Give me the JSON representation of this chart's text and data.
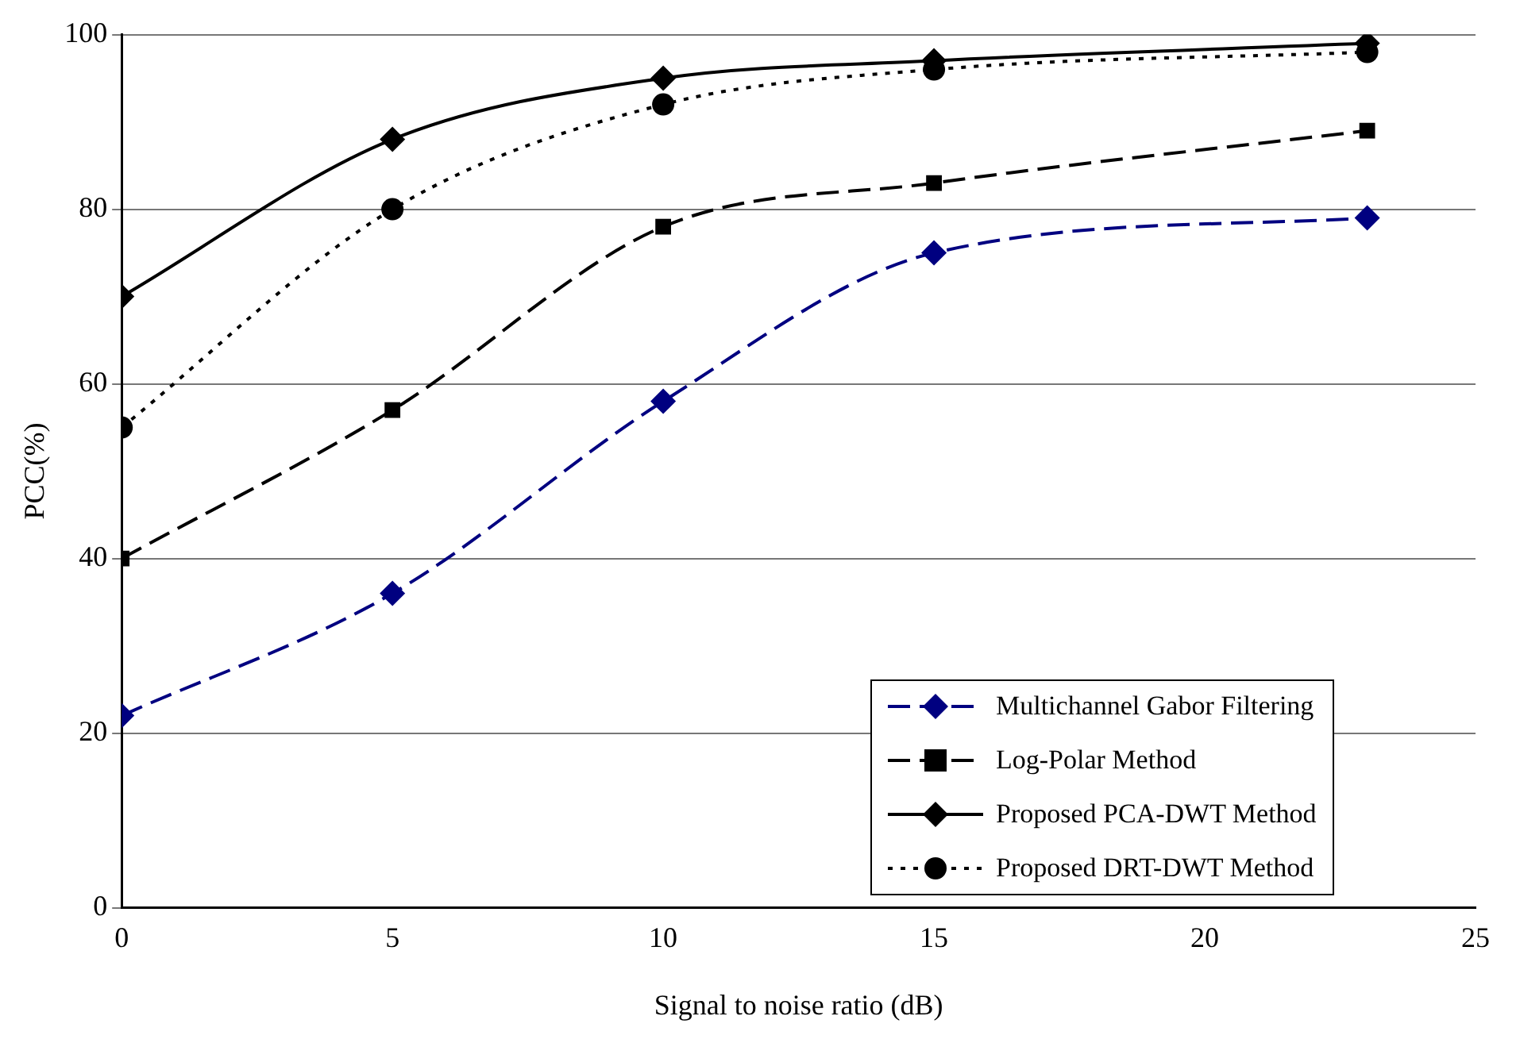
{
  "chart_data": {
    "type": "line",
    "xlabel": "Signal to noise ratio (dB)",
    "ylabel": "PCC(%)",
    "x": [
      0,
      5,
      10,
      15,
      23
    ],
    "series": [
      {
        "name": "Multichannel Gabor Filtering",
        "color": "#000080",
        "values": [
          22,
          36,
          58,
          75,
          79
        ],
        "marker": "diamond",
        "line_style": "dashed"
      },
      {
        "name": "Log-Polar Method",
        "color": "#000000",
        "values": [
          40,
          57,
          78,
          83,
          89
        ],
        "marker": "square",
        "line_style": "dashed"
      },
      {
        "name": "Proposed PCA-DWT Method",
        "color": "#000000",
        "values": [
          70,
          88,
          95,
          97,
          99
        ],
        "marker": "diamond",
        "line_style": "solid"
      },
      {
        "name": "Proposed DRT-DWT Method",
        "color": "#000000",
        "values": [
          55,
          80,
          92,
          96,
          98
        ],
        "marker": "circle",
        "line_style": "dotted"
      }
    ],
    "xlim": [
      0,
      25
    ],
    "xticks": [
      0,
      5,
      10,
      15,
      20,
      25
    ],
    "ylim": [
      0,
      100
    ],
    "yticks": [
      0,
      20,
      40,
      60,
      80,
      100
    ],
    "grid": "y",
    "legend": "bottom right"
  }
}
